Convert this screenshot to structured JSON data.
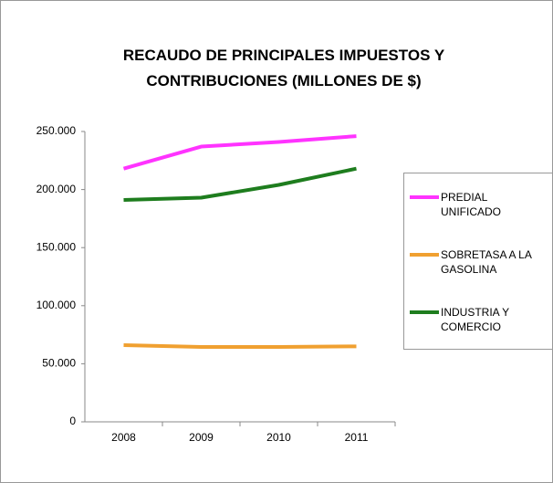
{
  "chart_data": {
    "type": "line",
    "title": "RECAUDO DE PRINCIPALES IMPUESTOS Y CONTRIBUCIONES (MILLONES DE $)",
    "categories": [
      "2008",
      "2009",
      "2010",
      "2011"
    ],
    "series": [
      {
        "name": "PREDIAL UNIFICADO",
        "color": "#ff33ff",
        "values": [
          218000,
          237000,
          241000,
          246000
        ]
      },
      {
        "name": "SOBRETASA A LA GASOLINA",
        "color": "#f0a030",
        "values": [
          66000,
          64500,
          64500,
          65000
        ]
      },
      {
        "name": "INDUSTRIA Y COMERCIO",
        "color": "#1e7d1e",
        "values": [
          191000,
          193000,
          204000,
          218000
        ]
      }
    ],
    "ylim": [
      0,
      250000
    ],
    "yticks": [
      0,
      {
        "value": 50000,
        "label": "50.000"
      },
      {
        "value": 100000,
        "label": "100.000"
      },
      {
        "value": 150000,
        "label": "150.000"
      },
      {
        "value": 200000,
        "label": "200.000"
      },
      {
        "value": 250000,
        "label": "250.000"
      }
    ],
    "grid": false,
    "legend": "right"
  }
}
